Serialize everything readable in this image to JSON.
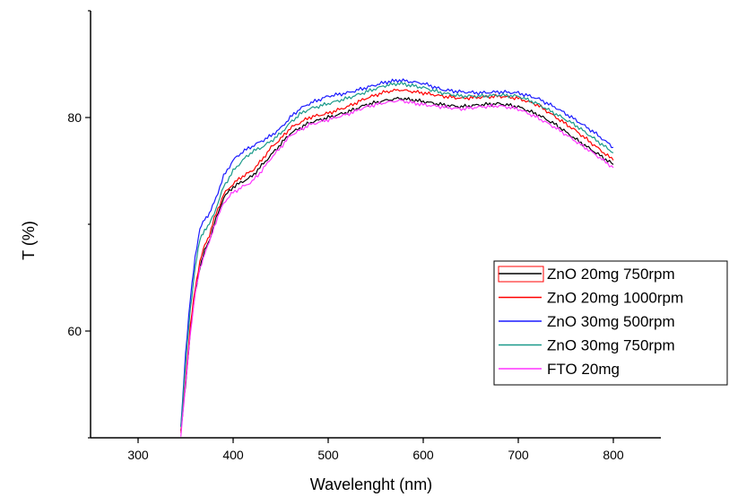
{
  "chart_data": {
    "type": "line",
    "xlabel": "Wavelenght (nm)",
    "ylabel": "T (%)",
    "xlim": [
      250,
      850
    ],
    "ylim": [
      50,
      90
    ],
    "xticks": [
      300,
      400,
      500,
      600,
      700,
      800
    ],
    "yticks": [
      60,
      80
    ],
    "grid": false,
    "legend_position": "right",
    "series": [
      {
        "name": "ZnO 20mg 750rpm",
        "color": "#000000",
        "x": [
          345,
          350,
          355,
          360,
          365,
          370,
          375,
          380,
          390,
          400,
          410,
          420,
          430,
          440,
          450,
          460,
          470,
          480,
          500,
          520,
          540,
          560,
          575,
          600,
          620,
          640,
          660,
          680,
          700,
          720,
          740,
          760,
          780,
          800
        ],
        "y": [
          50.5,
          55,
          60,
          63.5,
          66,
          67.5,
          68.5,
          70,
          72.5,
          73.5,
          74,
          74.5,
          75.5,
          76.5,
          77.5,
          78.5,
          79,
          79.5,
          80,
          80.5,
          81.2,
          81.6,
          81.8,
          81.5,
          81.2,
          81,
          81.2,
          81.3,
          81,
          80.3,
          79.3,
          78,
          76.8,
          75.6
        ]
      },
      {
        "name": "ZnO 20mg 1000rpm",
        "color": "#ff0000",
        "x": [
          345,
          350,
          355,
          360,
          365,
          370,
          375,
          380,
          390,
          400,
          410,
          420,
          430,
          440,
          450,
          460,
          470,
          480,
          500,
          520,
          540,
          560,
          575,
          600,
          620,
          640,
          660,
          680,
          700,
          720,
          740,
          760,
          780,
          800
        ],
        "y": [
          50.5,
          55.5,
          60.5,
          64,
          66.5,
          68,
          69,
          70.5,
          72.8,
          73.8,
          74.5,
          75,
          76,
          77.2,
          78,
          79,
          79.5,
          80,
          80.4,
          81,
          81.8,
          82.4,
          82.6,
          82.3,
          82,
          81.8,
          81.9,
          82,
          81.8,
          81.2,
          80,
          78.8,
          77.4,
          76
        ]
      },
      {
        "name": "ZnO 30mg 500rpm",
        "color": "#1a1aff",
        "x": [
          345,
          350,
          355,
          360,
          365,
          370,
          375,
          380,
          390,
          400,
          410,
          420,
          430,
          440,
          450,
          460,
          470,
          480,
          500,
          520,
          540,
          560,
          575,
          600,
          620,
          640,
          660,
          680,
          700,
          720,
          740,
          760,
          780,
          800
        ],
        "y": [
          51,
          58,
          63,
          67,
          69.5,
          70.5,
          71,
          72,
          74.5,
          76,
          76.8,
          77.3,
          77.8,
          78.3,
          79,
          80,
          80.8,
          81.3,
          82,
          82.3,
          82.8,
          83.3,
          83.5,
          83.2,
          82.6,
          82.4,
          82.3,
          82.4,
          82.3,
          81.8,
          80.9,
          79.8,
          78.6,
          77.2
        ]
      },
      {
        "name": "ZnO 30mg 750rpm",
        "color": "#1a9a8a",
        "x": [
          345,
          350,
          355,
          360,
          365,
          370,
          375,
          380,
          390,
          400,
          410,
          420,
          430,
          440,
          450,
          460,
          470,
          480,
          500,
          520,
          540,
          560,
          575,
          600,
          620,
          640,
          660,
          680,
          700,
          720,
          740,
          760,
          780,
          800
        ],
        "y": [
          51,
          57,
          62,
          66,
          68.5,
          69.5,
          70,
          71,
          73.5,
          75,
          76,
          76.8,
          77.2,
          77.8,
          78.5,
          79.5,
          80.3,
          80.8,
          81.3,
          81.8,
          82.4,
          83,
          83.2,
          82.8,
          82.3,
          82,
          82,
          82.1,
          82,
          81.3,
          80.3,
          79.3,
          78,
          76.7
        ]
      },
      {
        "name": "FTO 20mg",
        "color": "#ff33ff",
        "x": [
          345,
          350,
          355,
          360,
          365,
          370,
          375,
          380,
          390,
          400,
          410,
          420,
          430,
          440,
          450,
          460,
          470,
          480,
          500,
          520,
          540,
          560,
          575,
          600,
          620,
          640,
          660,
          680,
          700,
          720,
          740,
          760,
          780,
          800
        ],
        "y": [
          50.3,
          55,
          59.8,
          63.5,
          65.8,
          67.3,
          68.3,
          69.8,
          72,
          73,
          73.5,
          74,
          75,
          76.2,
          77.2,
          78.3,
          78.8,
          79.3,
          79.8,
          80.3,
          81,
          81.4,
          81.6,
          81.2,
          81,
          80.8,
          81,
          81.1,
          80.8,
          80,
          79,
          77.8,
          76.6,
          75.3
        ]
      }
    ]
  }
}
